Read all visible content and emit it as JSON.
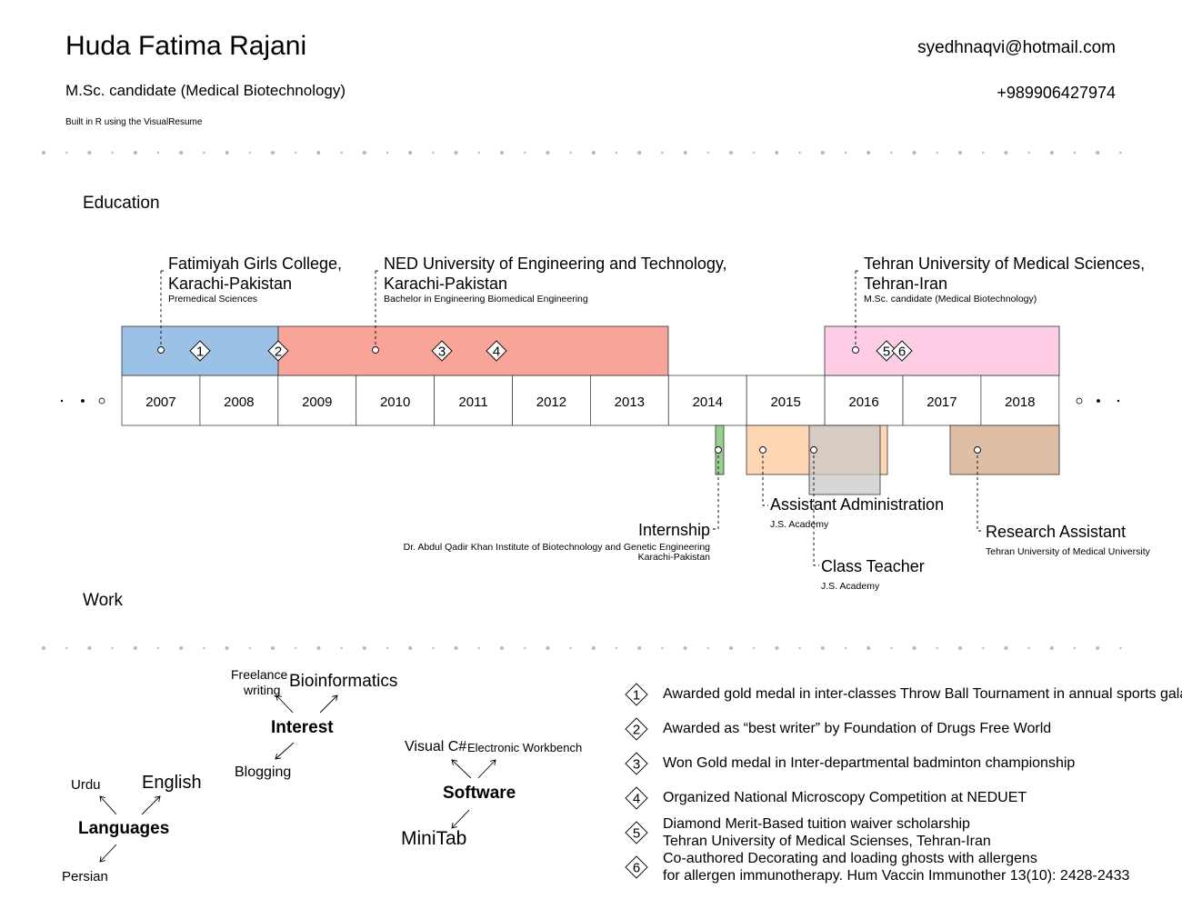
{
  "header": {
    "name": "Huda Fatima Rajani",
    "title": "M.Sc. candidate (Medical Biotechnology)",
    "credit": "Built in R using the VisualResume",
    "email": "syedhnaqvi@hotmail.com",
    "phone": "+989906427974"
  },
  "sections": {
    "education": "Education",
    "work": "Work"
  },
  "timeline": {
    "years": [
      "2007",
      "2008",
      "2009",
      "2010",
      "2011",
      "2012",
      "2013",
      "2014",
      "2015",
      "2016",
      "2017",
      "2018"
    ]
  },
  "colors": {
    "fatimiyah": "#9bc2e6",
    "ned": "#f8a498",
    "tehran": "#fccde5",
    "internship": "#96cf8f",
    "assistant_admin": "#fdd7b4",
    "class_teacher": "#c8c8c8",
    "research": "#dfbea6",
    "dot": "#b8b8b8"
  },
  "education": [
    {
      "line1": "Fatimiyah Girls College,",
      "line2": "Karachi-Pakistan",
      "sub": "Premedical Sciences"
    },
    {
      "line1": "NED University of Engineering and Technology,",
      "line2": "Karachi-Pakistan",
      "sub": "Bachelor in Engineering Biomedical Engineering"
    },
    {
      "line1": "Tehran University of Medical Sciences,",
      "line2": "Tehran-Iran",
      "sub": "M.Sc. candidate (Medical Biotechnology)"
    }
  ],
  "work": [
    {
      "title": "Internship",
      "sub1": "Dr. Abdul Qadir Khan Institute of Biotechnology and Genetic Engineering",
      "sub2": "Karachi-Pakistan"
    },
    {
      "title": "Assistant Administration",
      "sub": "J.S. Academy"
    },
    {
      "title": "Class Teacher",
      "sub": "J.S. Academy"
    },
    {
      "title": "Research Assistant",
      "sub": "Tehran University of Medical University"
    }
  ],
  "markers": [
    "1",
    "2",
    "3",
    "4",
    "5",
    "6"
  ],
  "interest": {
    "center": "Interest",
    "items": [
      "Freelance",
      "writing",
      "Bioinformatics",
      "Blogging"
    ]
  },
  "software": {
    "center": "Software",
    "items": [
      "Visual C#",
      "Electronic Workbench",
      "MiniTab"
    ]
  },
  "languages": {
    "center": "Languages",
    "items": [
      "Urdu",
      "English",
      "Persian"
    ]
  },
  "achievements": [
    {
      "num": "1",
      "line1": "Awarded gold medal in inter-classes Throw Ball Tournament in annual sports gala"
    },
    {
      "num": "2",
      "line1": "Awarded as “best writer” by Foundation of Drugs Free World"
    },
    {
      "num": "3",
      "line1": "Won Gold medal in Inter-departmental badminton championship"
    },
    {
      "num": "4",
      "line1": "Organized National Microscopy Competition at NEDUET"
    },
    {
      "num": "5",
      "line1": "Diamond Merit-Based tuition waiver scholarship",
      "line2": "Tehran University of Medical Scienses, Tehran-Iran"
    },
    {
      "num": "6",
      "line1": "Co-authored Decorating and loading ghosts with allergens",
      "line2": "for allergen immunotherapy. Hum Vaccin Immunother 13(10): 2428-2433"
    }
  ]
}
